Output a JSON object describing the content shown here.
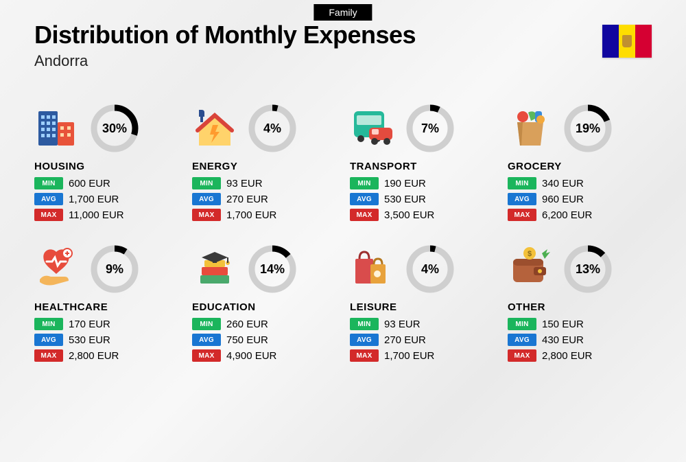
{
  "tag": "Family",
  "title": "Distribution of Monthly Expenses",
  "subtitle": "Andorra",
  "flag_colors": {
    "left": "#10069f",
    "center": "#fedd00",
    "right": "#d50032"
  },
  "badges": {
    "min": {
      "label": "MIN",
      "color": "#1bb55c"
    },
    "avg": {
      "label": "AVG",
      "color": "#1976d2"
    },
    "max": {
      "label": "MAX",
      "color": "#d32a2a"
    }
  },
  "donut": {
    "track_color": "#cfcfcf",
    "fill_color": "#000000",
    "stroke_width": 9,
    "radius": 30,
    "size": 74
  },
  "currency": "EUR",
  "categories": [
    {
      "name": "HOUSING",
      "percent": 30,
      "min": "600 EUR",
      "avg": "1,700 EUR",
      "max": "11,000 EUR",
      "icon": "buildings"
    },
    {
      "name": "ENERGY",
      "percent": 4,
      "min": "93 EUR",
      "avg": "270 EUR",
      "max": "1,700 EUR",
      "icon": "energy-house"
    },
    {
      "name": "TRANSPORT",
      "percent": 7,
      "min": "190 EUR",
      "avg": "530 EUR",
      "max": "3,500 EUR",
      "icon": "bus-car"
    },
    {
      "name": "GROCERY",
      "percent": 19,
      "min": "340 EUR",
      "avg": "960 EUR",
      "max": "6,200 EUR",
      "icon": "grocery-bag"
    },
    {
      "name": "HEALTHCARE",
      "percent": 9,
      "min": "170 EUR",
      "avg": "530 EUR",
      "max": "2,800 EUR",
      "icon": "heart-hand"
    },
    {
      "name": "EDUCATION",
      "percent": 14,
      "min": "260 EUR",
      "avg": "750 EUR",
      "max": "4,900 EUR",
      "icon": "grad-books"
    },
    {
      "name": "LEISURE",
      "percent": 4,
      "min": "93 EUR",
      "avg": "270 EUR",
      "max": "1,700 EUR",
      "icon": "shopping-bags"
    },
    {
      "name": "OTHER",
      "percent": 13,
      "min": "150 EUR",
      "avg": "430 EUR",
      "max": "2,800 EUR",
      "icon": "wallet"
    }
  ]
}
